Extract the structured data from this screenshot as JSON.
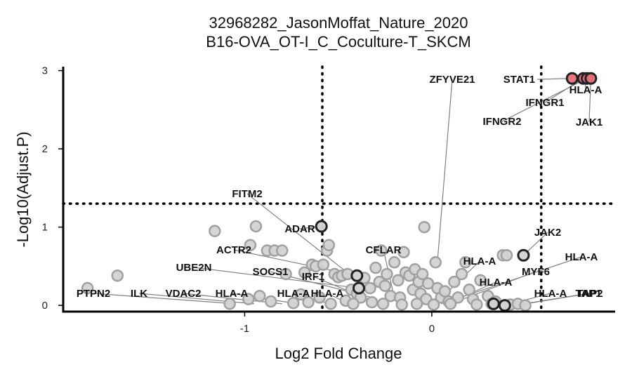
{
  "chart_data": {
    "type": "scatter",
    "title": "32968282_JasonMoffat_Nature_2020",
    "subtitle": "B16-OVA_OT-I_C_Coculture-T_SKCM",
    "xlabel": "Log2 Fold Change",
    "ylabel": "-Log10(Adjust.P)",
    "xlim": [
      -1.97,
      0.98
    ],
    "ylim": [
      -0.08,
      3.05
    ],
    "x_ticks": [
      -1,
      0
    ],
    "y_ticks": [
      0,
      1,
      2,
      3
    ],
    "x_tick_labels": [
      "-1",
      "0"
    ],
    "y_tick_labels": [
      "0",
      "1",
      "2",
      "3"
    ],
    "thresholds": {
      "fold_change": [
        -0.585,
        0.585
      ],
      "neg_log10_p": 1.3
    },
    "grid": false,
    "legend": "none",
    "colors": {
      "not_significant_fill": "#d3d3d3",
      "not_significant_stroke": "#a0a0a0",
      "significant_fill": "#e8707b",
      "highlight_stroke": "#222222",
      "threshold_line": "#000000",
      "label_line": "#808080"
    },
    "series": [
      {
        "group": "not-significant",
        "points": [
          {
            "x": -1.84,
            "y": 0.22
          },
          {
            "x": -1.68,
            "y": 0.38
          },
          {
            "x": -1.16,
            "y": 0.95
          },
          {
            "x": -0.94,
            "y": 1.01
          },
          {
            "x": -0.97,
            "y": 0.77
          },
          {
            "x": -0.88,
            "y": 0.7
          },
          {
            "x": -0.84,
            "y": 0.7
          },
          {
            "x": -0.8,
            "y": 0.7
          },
          {
            "x": -0.78,
            "y": 0.4
          },
          {
            "x": -0.68,
            "y": 0.42
          },
          {
            "x": -0.64,
            "y": 0.52
          },
          {
            "x": -0.62,
            "y": 0.5
          },
          {
            "x": -0.58,
            "y": 0.52
          },
          {
            "x": -0.56,
            "y": 0.7
          },
          {
            "x": -0.55,
            "y": 0.77
          },
          {
            "x": -0.52,
            "y": 0.4
          },
          {
            "x": -0.5,
            "y": 0.36
          },
          {
            "x": -0.48,
            "y": 0.38
          },
          {
            "x": -0.45,
            "y": 0.4
          },
          {
            "x": -0.43,
            "y": 0.2
          },
          {
            "x": -0.4,
            "y": 0.15
          },
          {
            "x": -0.38,
            "y": 0.1
          },
          {
            "x": -0.36,
            "y": 0.35
          },
          {
            "x": -0.33,
            "y": 0.22
          },
          {
            "x": -0.3,
            "y": 0.48
          },
          {
            "x": -0.28,
            "y": 0.3
          },
          {
            "x": -0.27,
            "y": 0.7
          },
          {
            "x": -0.25,
            "y": 0.25
          },
          {
            "x": -0.24,
            "y": 0.4
          },
          {
            "x": -0.22,
            "y": 0.12
          },
          {
            "x": -0.2,
            "y": 0.55
          },
          {
            "x": -0.18,
            "y": 0.32
          },
          {
            "x": -0.17,
            "y": 0.1
          },
          {
            "x": -0.15,
            "y": 0.68
          },
          {
            "x": -0.14,
            "y": 0.42
          },
          {
            "x": -0.12,
            "y": 0.38
          },
          {
            "x": -0.1,
            "y": 0.2
          },
          {
            "x": -0.09,
            "y": 0.46
          },
          {
            "x": -0.07,
            "y": 0.3
          },
          {
            "x": -0.06,
            "y": 0.15
          },
          {
            "x": -0.05,
            "y": 0.4
          },
          {
            "x": -0.03,
            "y": 0.08
          },
          {
            "x": -0.02,
            "y": 0.28
          },
          {
            "x": -0.04,
            "y": 1.0
          },
          {
            "x": 0.02,
            "y": 0.55
          },
          {
            "x": 0.03,
            "y": 0.22
          },
          {
            "x": 0.05,
            "y": 0.1
          },
          {
            "x": 0.07,
            "y": 0.18
          },
          {
            "x": 0.09,
            "y": 0.05
          },
          {
            "x": 0.12,
            "y": 0.3
          },
          {
            "x": 0.14,
            "y": 0.1
          },
          {
            "x": 0.16,
            "y": 0.4
          },
          {
            "x": 0.18,
            "y": 0.55
          },
          {
            "x": 0.2,
            "y": 0.2
          },
          {
            "x": 0.22,
            "y": 0.08
          },
          {
            "x": 0.26,
            "y": 0.32
          },
          {
            "x": 0.3,
            "y": 0.12
          },
          {
            "x": 0.34,
            "y": 0.05
          },
          {
            "x": 0.38,
            "y": 0.64
          },
          {
            "x": 0.4,
            "y": 0.64
          },
          {
            "x": -1.08,
            "y": 0.02
          },
          {
            "x": -0.98,
            "y": 0.08
          },
          {
            "x": -0.92,
            "y": 0.12
          },
          {
            "x": -0.86,
            "y": 0.05
          },
          {
            "x": -0.74,
            "y": 0.03
          },
          {
            "x": -0.7,
            "y": 0.14
          },
          {
            "x": -0.66,
            "y": 0.04
          },
          {
            "x": -0.6,
            "y": 0.1
          },
          {
            "x": -0.54,
            "y": 0.02
          },
          {
            "x": -0.46,
            "y": 0.06
          },
          {
            "x": -0.42,
            "y": 0.02
          },
          {
            "x": -0.32,
            "y": 0.04
          },
          {
            "x": -0.26,
            "y": 0.02
          },
          {
            "x": -0.16,
            "y": 0.01
          },
          {
            "x": -0.08,
            "y": 0.02
          },
          {
            "x": 0.01,
            "y": 0.01
          },
          {
            "x": 0.1,
            "y": 0.02
          },
          {
            "x": 0.24,
            "y": 0.01
          },
          {
            "x": 0.32,
            "y": 0.02
          },
          {
            "x": 0.42,
            "y": 0.01
          },
          {
            "x": 0.46,
            "y": 0.02
          },
          {
            "x": 0.5,
            "y": 0.0
          }
        ]
      },
      {
        "group": "significant",
        "points": [
          {
            "x": 0.75,
            "y": 2.9
          },
          {
            "x": 0.81,
            "y": 2.9
          },
          {
            "x": 0.83,
            "y": 2.9
          },
          {
            "x": 0.85,
            "y": 2.9
          }
        ]
      },
      {
        "group": "highlighted-not-significant",
        "points": [
          {
            "x": -0.59,
            "y": 1.01
          },
          {
            "x": 0.49,
            "y": 0.64
          },
          {
            "x": -0.4,
            "y": 0.38
          },
          {
            "x": -0.39,
            "y": 0.22
          },
          {
            "x": 0.39,
            "y": 0.0
          },
          {
            "x": 0.33,
            "y": 0.02
          }
        ]
      }
    ],
    "labels": [
      {
        "text": "STAT1",
        "x": 0.75,
        "y": 2.9
      },
      {
        "text": "HLA-A",
        "x": 0.82,
        "y": 2.9
      },
      {
        "text": "IFNGR1",
        "x": 0.81,
        "y": 2.9
      },
      {
        "text": "IFNGR2",
        "x": 0.83,
        "y": 2.9
      },
      {
        "text": "JAK1",
        "x": 0.85,
        "y": 2.9
      },
      {
        "text": "ZFYVE21",
        "x": 0.03,
        "y": 0.55
      },
      {
        "text": "FITM2",
        "x": -0.42,
        "y": 0.36
      },
      {
        "text": "ADAR",
        "x": -0.59,
        "y": 1.01
      },
      {
        "text": "ACTR2",
        "x": -0.4,
        "y": 0.38
      },
      {
        "text": "CFLAR",
        "x": -0.2,
        "y": 0.1
      },
      {
        "text": "UBE2N",
        "x": -0.39,
        "y": 0.22
      },
      {
        "text": "SOCS1",
        "x": -0.32,
        "y": 0.1
      },
      {
        "text": "IRF1",
        "x": -0.3,
        "y": 0.04
      },
      {
        "text": "PTPN2",
        "x": -1.05,
        "y": 0.02
      },
      {
        "text": "ILK",
        "x": -0.95,
        "y": 0.02
      },
      {
        "text": "VDAC2",
        "x": -0.8,
        "y": 0.02
      },
      {
        "text": "HLA-A",
        "x": -0.72,
        "y": 0.02
      },
      {
        "text": "HLA-A",
        "x": -0.55,
        "y": 0.02
      },
      {
        "text": "HLA-A",
        "x": -0.44,
        "y": 0.02
      },
      {
        "text": "JAK2",
        "x": 0.49,
        "y": 0.64
      },
      {
        "text": "HLA-A",
        "x": 0.02,
        "y": 0.02
      },
      {
        "text": "MYF6",
        "x": 0.1,
        "y": 0.02
      },
      {
        "text": "HLA-A",
        "x": 0.05,
        "y": 0.02
      },
      {
        "text": "HLA-A",
        "x": 0.08,
        "y": 0.02
      },
      {
        "text": "HLA-A",
        "x": 0.39,
        "y": 0.0
      },
      {
        "text": "TAP1",
        "x": 0.44,
        "y": 0.0
      },
      {
        "text": "TAP2",
        "x": 0.45,
        "y": 0.0
      }
    ]
  }
}
